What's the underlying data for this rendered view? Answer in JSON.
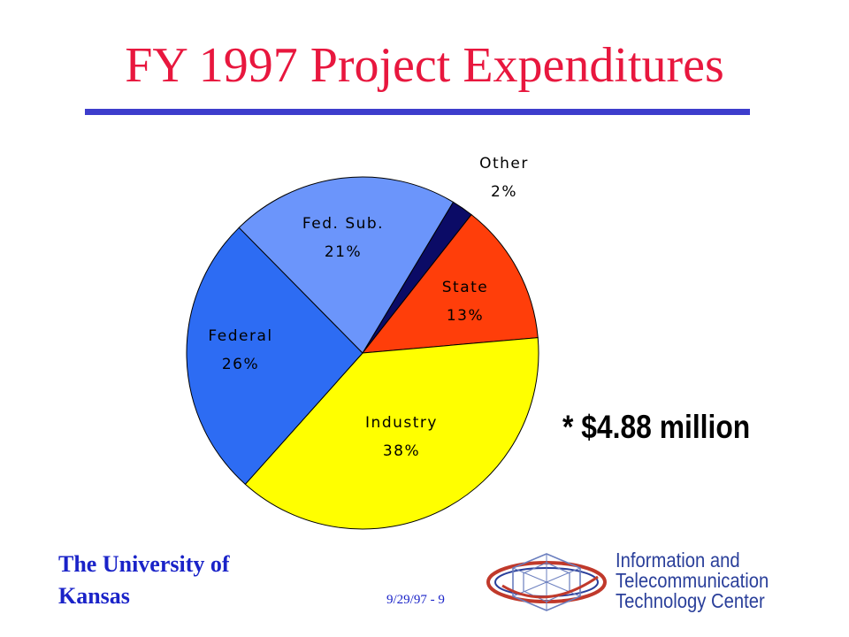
{
  "slide": {
    "title": "FY 1997 Project Expenditures",
    "total_note": "* $4.88 million",
    "org_line1": "The University of",
    "org_line2": "Kansas",
    "slide_number": "9/29/97 - 9",
    "logo_line1": "Information and",
    "logo_line2": "Telecommunication",
    "logo_line3": "Technology Center"
  },
  "chart_data": {
    "type": "pie",
    "title": "",
    "slices": [
      {
        "name": "Other",
        "pct_label": "2%",
        "value": 2,
        "color": "#0b0b66"
      },
      {
        "name": "State",
        "pct_label": "13%",
        "value": 13,
        "color": "#ff3e0a"
      },
      {
        "name": "Industry",
        "pct_label": "38%",
        "value": 38,
        "color": "#ffff00"
      },
      {
        "name": "Federal",
        "pct_label": "26%",
        "value": 26,
        "color": "#2d6cf3"
      },
      {
        "name": "Fed. Sub.",
        "pct_label": "21%",
        "value": 21,
        "color": "#6b95fb"
      }
    ],
    "legend": "none",
    "labels": "on-slice"
  }
}
